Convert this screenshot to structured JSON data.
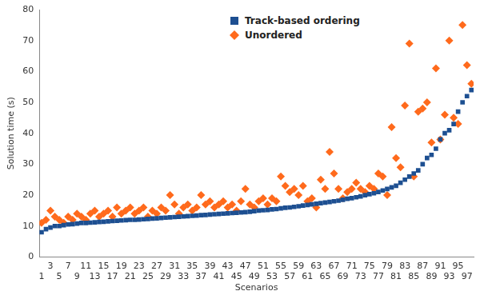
{
  "chart_data": {
    "type": "scatter",
    "x_label": "Scenarios",
    "y_label": "Solution time (s)",
    "categories": [
      "1",
      null,
      "3",
      null,
      "5",
      null,
      "7",
      null,
      "9",
      null,
      "11",
      null,
      "13",
      null,
      "15",
      null,
      "17",
      null,
      "19",
      null,
      "21",
      null,
      "23",
      null,
      "25",
      null,
      "27",
      null,
      "29",
      null,
      "31",
      null,
      "33",
      null,
      "35",
      null,
      "37",
      null,
      "39",
      null,
      "41",
      null,
      "43",
      null,
      "45",
      null,
      "47",
      null,
      "49",
      null,
      "51",
      null,
      "53",
      null,
      "55",
      null,
      "57",
      null,
      "59",
      null,
      "61",
      null,
      "63",
      null,
      "65",
      null,
      "67",
      null,
      "69",
      null,
      "71",
      null,
      "73",
      null,
      "75",
      null,
      "77",
      null,
      "79",
      null,
      "81",
      null,
      "83",
      null,
      "85",
      null,
      "87",
      null,
      "89",
      null,
      "91",
      null,
      "93",
      null,
      "95",
      null,
      "97",
      null
    ],
    "series": [
      {
        "name": "Track-based ordering",
        "color": "#1d4f91",
        "marker": "square",
        "values": [
          8,
          9,
          9.5,
          10,
          10,
          10.3,
          10.5,
          10.6,
          10.8,
          11,
          11,
          11.1,
          11.2,
          11.3,
          11.4,
          11.5,
          11.6,
          11.7,
          11.8,
          11.9,
          12,
          12,
          12.1,
          12.2,
          12.3,
          12.4,
          12.5,
          12.6,
          12.7,
          12.8,
          12.9,
          13,
          13.1,
          13.2,
          13.3,
          13.4,
          13.5,
          13.6,
          13.7,
          13.8,
          13.9,
          14,
          14.1,
          14.2,
          14.3,
          14.4,
          14.5,
          14.6,
          14.8,
          15,
          15.1,
          15.2,
          15.4,
          15.5,
          15.7,
          15.9,
          16,
          16.2,
          16.4,
          16.6,
          16.8,
          17,
          17.2,
          17.4,
          17.6,
          17.8,
          18,
          18.2,
          18.5,
          18.8,
          19,
          19.3,
          19.6,
          20,
          20.3,
          20.6,
          21,
          21.5,
          22,
          22.5,
          23,
          24,
          25,
          26,
          27,
          28,
          30,
          32,
          33,
          35,
          38,
          40,
          41,
          43,
          47,
          50,
          52,
          54
        ]
      },
      {
        "name": "Unordered",
        "color": "#ff6a1c",
        "marker": "diamond",
        "values": [
          11,
          12,
          15,
          13,
          12,
          11,
          13,
          12,
          14,
          13,
          12,
          14,
          15,
          13,
          14,
          15,
          13,
          16,
          14,
          15,
          16,
          14,
          15,
          16,
          13,
          15,
          14,
          16,
          15,
          20,
          17,
          14,
          16,
          17,
          15,
          16,
          20,
          17,
          18,
          16,
          17,
          18,
          16,
          17,
          15,
          18,
          22,
          17,
          16,
          18,
          19,
          17,
          19,
          18,
          26,
          23,
          21,
          22,
          20,
          23,
          18,
          19,
          16,
          25,
          22,
          34,
          27,
          22,
          19,
          21,
          22,
          24,
          22,
          21,
          23,
          22,
          27,
          26,
          20,
          42,
          32,
          29,
          49,
          69,
          26,
          47,
          48,
          50,
          37,
          61,
          38,
          46,
          70,
          45,
          43,
          75,
          62,
          56
        ]
      }
    ],
    "ylim": [
      0,
      80
    ],
    "yticks": [
      0,
      10,
      20,
      30,
      40,
      50,
      60,
      70,
      80
    ],
    "grid": false,
    "legend": "top"
  }
}
